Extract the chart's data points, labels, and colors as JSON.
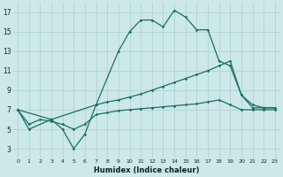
{
  "xlabel": "Humidex (Indice chaleur)",
  "bg_color": "#cce8e8",
  "line_color": "#1a7060",
  "grid_color": "#aad0d0",
  "xlim": [
    -0.5,
    23.5
  ],
  "ylim": [
    2.0,
    18.0
  ],
  "xticks": [
    0,
    1,
    2,
    3,
    4,
    5,
    6,
    7,
    8,
    9,
    10,
    11,
    12,
    13,
    14,
    15,
    16,
    17,
    18,
    19,
    20,
    21,
    22,
    23
  ],
  "yticks": [
    3,
    5,
    7,
    9,
    11,
    13,
    15,
    17
  ],
  "line1_x": [
    0,
    1,
    3,
    4,
    5,
    6,
    7,
    9,
    10,
    11,
    12,
    13,
    14,
    15,
    16,
    17,
    18,
    19,
    20,
    21,
    22,
    23
  ],
  "line1_y": [
    7.0,
    5.0,
    6.0,
    5.0,
    3.0,
    4.5,
    7.5,
    13.0,
    15.0,
    16.2,
    16.2,
    15.5,
    17.2,
    16.5,
    15.2,
    15.2,
    12.0,
    11.5,
    8.5,
    7.2,
    7.2,
    7.2
  ],
  "line2_x": [
    0,
    3,
    7,
    8,
    9,
    10,
    11,
    12,
    13,
    14,
    15,
    16,
    17,
    18,
    19,
    20,
    21,
    22,
    23
  ],
  "line2_y": [
    7.0,
    6.0,
    7.5,
    7.8,
    8.0,
    8.3,
    8.6,
    9.0,
    9.4,
    9.8,
    10.2,
    10.6,
    11.0,
    11.5,
    12.0,
    8.5,
    7.5,
    7.2,
    7.2
  ],
  "line3_x": [
    0,
    1,
    2,
    3,
    4,
    5,
    6,
    7,
    8,
    9,
    10,
    11,
    12,
    13,
    14,
    15,
    16,
    17,
    18,
    19,
    20,
    21,
    22,
    23
  ],
  "line3_y": [
    7.0,
    5.5,
    6.0,
    5.8,
    5.5,
    5.0,
    5.5,
    6.5,
    6.7,
    6.9,
    7.0,
    7.1,
    7.2,
    7.3,
    7.4,
    7.5,
    7.6,
    7.8,
    8.0,
    7.5,
    7.0,
    7.0,
    7.0,
    7.0
  ]
}
